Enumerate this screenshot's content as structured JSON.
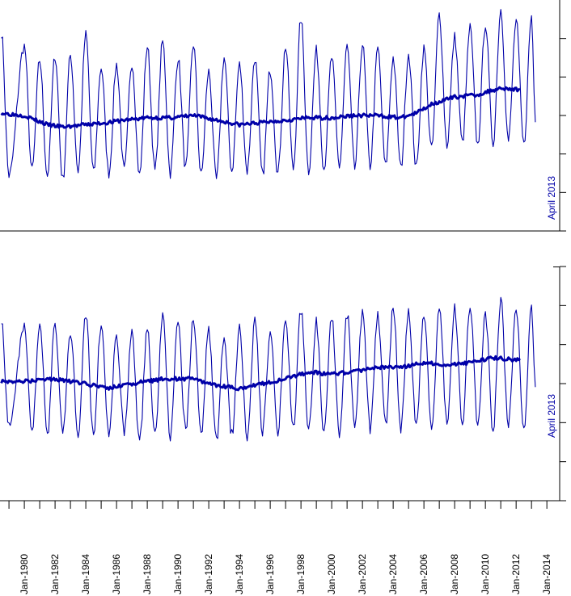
{
  "chart_data": [
    {
      "type": "line",
      "title": "",
      "annotation": "April 2013",
      "x_range": [
        "1978-06",
        "2014-11"
      ],
      "ylim": [
        0,
        100
      ],
      "grid": false,
      "colors": {
        "series": "#0000a8"
      },
      "seasonal": {
        "name": "",
        "start": "1978-07",
        "end": "2013-04",
        "amplitude_early": 22,
        "amplitude_late": 32,
        "baseline_points": [
          [
            "1978-07",
            51
          ],
          [
            "1980-01",
            49
          ],
          [
            "1982-01",
            46
          ],
          [
            "1984-01",
            47
          ],
          [
            "1986-01",
            48
          ],
          [
            "1988-01",
            50
          ],
          [
            "1990-01",
            50
          ],
          [
            "1992-01",
            49
          ],
          [
            "1994-01",
            47
          ],
          [
            "1996-01",
            48
          ],
          [
            "1998-01",
            50
          ],
          [
            "2000-01",
            50
          ],
          [
            "2002-01",
            50
          ],
          [
            "2004-01",
            51
          ],
          [
            "2006-01",
            53
          ],
          [
            "2007-01",
            58
          ],
          [
            "2009-01",
            60
          ],
          [
            "2011-01",
            62
          ],
          [
            "2013-04",
            62
          ]
        ],
        "peaks": [
          [
            "1978-07",
            86
          ],
          [
            "1980-01",
            80
          ],
          [
            "1981-01",
            74
          ],
          [
            "1982-01",
            76
          ],
          [
            "1983-01",
            76
          ],
          [
            "1984-01",
            85
          ],
          [
            "1985-01",
            71
          ],
          [
            "1986-01",
            72
          ],
          [
            "1987-01",
            73
          ],
          [
            "1988-01",
            80
          ],
          [
            "1989-01",
            82
          ],
          [
            "1990-01",
            75
          ],
          [
            "1991-01",
            81
          ],
          [
            "1992-01",
            69
          ],
          [
            "1993-01",
            75
          ],
          [
            "1994-01",
            72
          ],
          [
            "1995-01",
            75
          ],
          [
            "1996-01",
            70
          ],
          [
            "1997-01",
            80
          ],
          [
            "1998-01",
            92
          ],
          [
            "1999-01",
            78
          ],
          [
            "2000-01",
            75
          ],
          [
            "2001-01",
            80
          ],
          [
            "2002-01",
            81
          ],
          [
            "2003-01",
            79
          ],
          [
            "2004-01",
            75
          ],
          [
            "2005-01",
            77
          ],
          [
            "2006-01",
            79
          ],
          [
            "2007-01",
            94
          ],
          [
            "2008-01",
            84
          ],
          [
            "2009-01",
            88
          ],
          [
            "2010-01",
            90
          ],
          [
            "2011-01",
            96
          ],
          [
            "2012-01",
            91
          ],
          [
            "2013-01",
            93
          ]
        ],
        "troughs": [
          [
            "1979-01",
            24
          ],
          [
            "1980-07",
            26
          ],
          [
            "1981-07",
            24
          ],
          [
            "1982-07",
            22
          ],
          [
            "1983-07",
            26
          ],
          [
            "1984-07",
            25
          ],
          [
            "1985-07",
            25
          ],
          [
            "1986-07",
            26
          ],
          [
            "1987-07",
            24
          ],
          [
            "1988-07",
            26
          ],
          [
            "1989-07",
            25
          ],
          [
            "1990-07",
            27
          ],
          [
            "1991-07",
            24
          ],
          [
            "1992-07",
            22
          ],
          [
            "1993-07",
            26
          ],
          [
            "1994-07",
            26
          ],
          [
            "1995-07",
            24
          ],
          [
            "1996-07",
            25
          ],
          [
            "1997-07",
            27
          ],
          [
            "1998-07",
            26
          ],
          [
            "1999-07",
            27
          ],
          [
            "2000-07",
            28
          ],
          [
            "2001-07",
            27
          ],
          [
            "2002-07",
            28
          ],
          [
            "2003-07",
            28
          ],
          [
            "2004-07",
            27
          ],
          [
            "2005-07",
            27
          ],
          [
            "2006-07",
            35
          ],
          [
            "2007-07",
            37
          ],
          [
            "2008-07",
            38
          ],
          [
            "2009-07",
            37
          ],
          [
            "2010-07",
            38
          ],
          [
            "2011-07",
            39
          ],
          [
            "2012-07",
            37
          ],
          [
            "2013-04",
            49
          ]
        ]
      },
      "trend": {
        "name": "",
        "start": "1978-07",
        "end": "2012-04",
        "values": [
          [
            "1978-07",
            51
          ],
          [
            "1980-01",
            50
          ],
          [
            "1981-07",
            46
          ],
          [
            "1982-07",
            45
          ],
          [
            "1984-01",
            46
          ],
          [
            "1985-07",
            47
          ],
          [
            "1986-07",
            48
          ],
          [
            "1988-01",
            49
          ],
          [
            "1989-07",
            49
          ],
          [
            "1991-01",
            50
          ],
          [
            "1992-07",
            48
          ],
          [
            "1994-01",
            46
          ],
          [
            "1995-07",
            47
          ],
          [
            "1997-01",
            48
          ],
          [
            "1998-07",
            49
          ],
          [
            "2000-01",
            49
          ],
          [
            "2001-07",
            50
          ],
          [
            "2003-01",
            50
          ],
          [
            "2004-07",
            49
          ],
          [
            "2005-07",
            51
          ],
          [
            "2006-07",
            55
          ],
          [
            "2008-01",
            58
          ],
          [
            "2009-07",
            59
          ],
          [
            "2011-01",
            62
          ],
          [
            "2012-04",
            61
          ]
        ]
      }
    },
    {
      "type": "line",
      "title": "",
      "annotation": "April 2013",
      "x_range": [
        "1978-06",
        "2014-11"
      ],
      "ylim": [
        0,
        100
      ],
      "grid": false,
      "colors": {
        "series": "#0000a8"
      },
      "seasonal": {
        "name": "",
        "start": "1978-07",
        "end": "2013-04",
        "amplitude_early": 24,
        "amplitude_late": 30,
        "baseline_points": [
          [
            "1978-07",
            51
          ],
          [
            "1980-01",
            52
          ],
          [
            "1982-01",
            52
          ],
          [
            "1984-01",
            51
          ],
          [
            "1986-01",
            50
          ],
          [
            "1988-01",
            51
          ],
          [
            "1990-01",
            52
          ],
          [
            "1992-01",
            51
          ],
          [
            "1994-01",
            49
          ],
          [
            "1996-01",
            51
          ],
          [
            "1998-01",
            55
          ],
          [
            "2000-01",
            54
          ],
          [
            "2002-01",
            55
          ],
          [
            "2004-01",
            58
          ],
          [
            "2006-01",
            58
          ],
          [
            "2008-01",
            58
          ],
          [
            "2010-01",
            60
          ],
          [
            "2012-01",
            61
          ],
          [
            "2013-04",
            60
          ]
        ],
        "peaks": [
          [
            "1978-07",
            78
          ],
          [
            "1980-01",
            75
          ],
          [
            "1981-01",
            77
          ],
          [
            "1982-01",
            76
          ],
          [
            "1983-01",
            72
          ],
          [
            "1984-01",
            79
          ],
          [
            "1985-01",
            76
          ],
          [
            "1986-01",
            70
          ],
          [
            "1987-01",
            72
          ],
          [
            "1988-01",
            73
          ],
          [
            "1989-01",
            79
          ],
          [
            "1990-01",
            75
          ],
          [
            "1991-01",
            78
          ],
          [
            "1992-01",
            73
          ],
          [
            "1993-01",
            70
          ],
          [
            "1994-01",
            75
          ],
          [
            "1995-01",
            77
          ],
          [
            "1996-01",
            72
          ],
          [
            "1997-01",
            78
          ],
          [
            "1998-01",
            82
          ],
          [
            "1999-01",
            76
          ],
          [
            "2000-01",
            79
          ],
          [
            "2001-01",
            80
          ],
          [
            "2002-01",
            80
          ],
          [
            "2003-01",
            80
          ],
          [
            "2004-01",
            82
          ],
          [
            "2005-01",
            81
          ],
          [
            "2006-01",
            80
          ],
          [
            "2007-01",
            83
          ],
          [
            "2008-01",
            83
          ],
          [
            "2009-01",
            83
          ],
          [
            "2010-01",
            80
          ],
          [
            "2011-01",
            86
          ],
          [
            "2012-01",
            83
          ],
          [
            "2013-01",
            84
          ]
        ],
        "troughs": [
          [
            "1979-01",
            31
          ],
          [
            "1980-07",
            28
          ],
          [
            "1981-07",
            28
          ],
          [
            "1982-07",
            29
          ],
          [
            "1983-07",
            29
          ],
          [
            "1984-07",
            28
          ],
          [
            "1985-07",
            28
          ],
          [
            "1986-07",
            29
          ],
          [
            "1987-07",
            25
          ],
          [
            "1988-07",
            28
          ],
          [
            "1989-07",
            28
          ],
          [
            "1990-07",
            30
          ],
          [
            "1991-07",
            29
          ],
          [
            "1992-07",
            25
          ],
          [
            "1993-07",
            28
          ],
          [
            "1994-07",
            28
          ],
          [
            "1995-07",
            30
          ],
          [
            "1996-07",
            30
          ],
          [
            "1997-07",
            30
          ],
          [
            "1998-07",
            30
          ],
          [
            "1999-07",
            30
          ],
          [
            "2000-07",
            28
          ],
          [
            "2001-07",
            31
          ],
          [
            "2002-07",
            31
          ],
          [
            "2003-07",
            32
          ],
          [
            "2004-07",
            31
          ],
          [
            "2005-07",
            32
          ],
          [
            "2006-07",
            30
          ],
          [
            "2007-07",
            33
          ],
          [
            "2008-07",
            32
          ],
          [
            "2009-07",
            33
          ],
          [
            "2010-07",
            30
          ],
          [
            "2011-07",
            32
          ],
          [
            "2012-07",
            30
          ],
          [
            "2013-04",
            50
          ]
        ]
      },
      "trend": {
        "name": "",
        "start": "1978-07",
        "end": "2012-04",
        "values": [
          [
            "1978-07",
            51
          ],
          [
            "1980-01",
            51
          ],
          [
            "1982-01",
            52
          ],
          [
            "1984-01",
            50
          ],
          [
            "1985-07",
            48
          ],
          [
            "1987-01",
            50
          ],
          [
            "1989-01",
            52
          ],
          [
            "1991-01",
            52
          ],
          [
            "1992-07",
            49
          ],
          [
            "1994-01",
            48
          ],
          [
            "1995-07",
            50
          ],
          [
            "1997-01",
            52
          ],
          [
            "1998-07",
            55
          ],
          [
            "2000-01",
            54
          ],
          [
            "2001-07",
            55
          ],
          [
            "2003-01",
            57
          ],
          [
            "2004-07",
            57
          ],
          [
            "2006-01",
            59
          ],
          [
            "2007-07",
            58
          ],
          [
            "2009-01",
            59
          ],
          [
            "2010-07",
            61
          ],
          [
            "2012-04",
            60
          ]
        ]
      }
    }
  ],
  "x_axis": {
    "major_tick_interval_years": 1,
    "tick_labels": [
      "Jan-1980",
      "Jan-1982",
      "Jan-1984",
      "Jan-1986",
      "Jan-1988",
      "Jan-1990",
      "Jan-1992",
      "Jan-1994",
      "Jan-1996",
      "Jan-1998",
      "Jan-2000",
      "Jan-2002",
      "Jan-2004",
      "Jan-2006",
      "Jan-2008",
      "Jan-2010",
      "Jan-2012",
      "Jan-2014"
    ]
  }
}
